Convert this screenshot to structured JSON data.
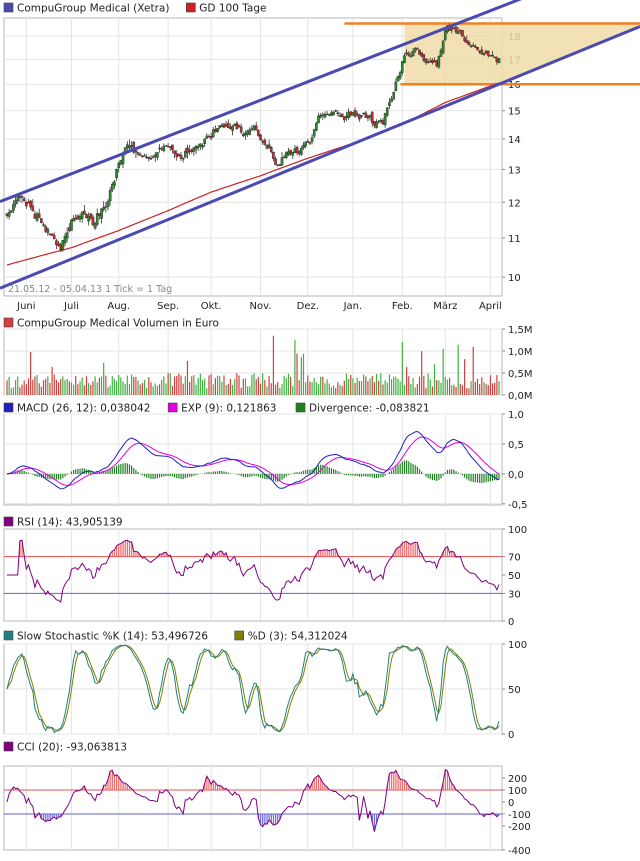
{
  "chart_data": [
    {
      "type": "candlestick",
      "panel": "price",
      "legend": [
        {
          "label": "CompuGroup Medical (Xetra)",
          "color": "#4a4aa8"
        },
        {
          "label": "GD 100 Tage",
          "color": "#cc2222"
        }
      ],
      "date_range_note": "21.05.12 - 05.04.13   1 Tick = 1 Tag",
      "x_tick_labels": [
        "Juni",
        "Juli",
        "Aug.",
        "Sep.",
        "Okt.",
        "Nov.",
        "Dez.",
        "Jan.",
        "Feb.",
        "März",
        "April"
      ],
      "y_tick_labels": [
        "10",
        "11",
        "12",
        "13",
        "14",
        "15",
        "16",
        "17",
        "18"
      ],
      "y_ticks": [
        10,
        11,
        12,
        13,
        14,
        15,
        16,
        17,
        18
      ],
      "ylim": [
        9.55,
        18.8
      ],
      "y_scale": "log",
      "grid": true,
      "close_anchors": [
        [
          "2012-05-21",
          11.6
        ],
        [
          "2012-05-28",
          12.2
        ],
        [
          "2012-06-04",
          11.8
        ],
        [
          "2012-06-11",
          11.4
        ],
        [
          "2012-06-18",
          11.0
        ],
        [
          "2012-06-25",
          10.8
        ],
        [
          "2012-07-02",
          11.4
        ],
        [
          "2012-07-09",
          11.8
        ],
        [
          "2012-07-16",
          11.5
        ],
        [
          "2012-07-23",
          11.9
        ],
        [
          "2012-07-30",
          12.8
        ],
        [
          "2012-08-06",
          13.8
        ],
        [
          "2012-08-13",
          13.5
        ],
        [
          "2012-08-20",
          13.3
        ],
        [
          "2012-08-27",
          13.6
        ],
        [
          "2012-09-03",
          13.7
        ],
        [
          "2012-09-10",
          13.4
        ],
        [
          "2012-09-17",
          13.5
        ],
        [
          "2012-09-24",
          14.0
        ],
        [
          "2012-10-01",
          14.3
        ],
        [
          "2012-10-08",
          14.5
        ],
        [
          "2012-10-15",
          14.4
        ],
        [
          "2012-10-22",
          14.2
        ],
        [
          "2012-10-29",
          14.4
        ],
        [
          "2012-11-05",
          13.9
        ],
        [
          "2012-11-12",
          13.2
        ],
        [
          "2012-11-19",
          13.5
        ],
        [
          "2012-11-26",
          13.4
        ],
        [
          "2012-12-03",
          13.9
        ],
        [
          "2012-12-10",
          14.8
        ],
        [
          "2012-12-17",
          14.9
        ],
        [
          "2012-12-24",
          14.6
        ],
        [
          "2012-12-31",
          14.6
        ],
        [
          "2013-01-07",
          14.7
        ],
        [
          "2013-01-14",
          14.5
        ],
        [
          "2013-01-21",
          14.6
        ],
        [
          "2013-01-28",
          15.7
        ],
        [
          "2013-02-04",
          17.2
        ],
        [
          "2013-02-11",
          17.3
        ],
        [
          "2013-02-18",
          16.9
        ],
        [
          "2013-02-25",
          17.0
        ],
        [
          "2013-03-04",
          18.4
        ],
        [
          "2013-03-11",
          18.2
        ],
        [
          "2013-03-18",
          17.5
        ],
        [
          "2013-03-25",
          17.3
        ],
        [
          "2013-04-05",
          17.2
        ]
      ],
      "sma100_anchors": [
        [
          "2012-05-21",
          10.3
        ],
        [
          "2012-07-01",
          10.75
        ],
        [
          "2012-08-01",
          11.2
        ],
        [
          "2012-09-01",
          11.75
        ],
        [
          "2012-10-01",
          12.3
        ],
        [
          "2012-11-01",
          12.8
        ],
        [
          "2012-12-01",
          13.35
        ],
        [
          "2013-01-01",
          13.85
        ],
        [
          "2013-02-01",
          14.5
        ],
        [
          "2013-03-01",
          15.3
        ],
        [
          "2013-04-05",
          16.05
        ]
      ],
      "trend_channel": {
        "color": "#4a4ab0",
        "upper": [
          [
            "2012-05-21",
            12.1
          ],
          [
            "2013-03-09",
            18.55
          ],
          [
            "2013-04-05",
            19.3
          ]
        ],
        "lower": [
          [
            "2012-05-21",
            9.8
          ],
          [
            "2013-04-05",
            16.0
          ]
        ]
      },
      "highlight_band": {
        "from": 16.0,
        "to": 18.55,
        "line_color": "#f08020",
        "fill": "#f0dca8"
      }
    },
    {
      "type": "bar",
      "panel": "volume",
      "legend": [
        {
          "label": "CompuGroup Medical Volumen in Euro",
          "color": "#d04040"
        }
      ],
      "y_tick_labels": [
        "0,0M",
        "0,5M",
        "1,0M",
        "1,5M"
      ],
      "y_ticks": [
        0,
        0.5,
        1.0,
        1.5
      ],
      "ylim": [
        0,
        1.5
      ],
      "unit": "Mio. Euro",
      "typical_daily_volume": [
        0.15,
        0.5
      ],
      "peak_daily_volume": 1.4,
      "colors": {
        "down": "#d04040",
        "up": "#40b040"
      }
    },
    {
      "type": "line",
      "panel": "macd",
      "legend": [
        {
          "label": "MACD (26, 12): 0,038042",
          "color": "#2020c0"
        },
        {
          "label": "EXP (9): 0,121863",
          "color": "#e000e0"
        },
        {
          "label": "Divergence: -0,083821",
          "color": "#208020"
        }
      ],
      "y_tick_labels": [
        "-0,5",
        "0,0",
        "0,5",
        "1,0"
      ],
      "y_ticks": [
        -0.5,
        0,
        0.5,
        1.0
      ],
      "ylim": [
        -0.52,
        1.0
      ]
    },
    {
      "type": "line",
      "panel": "rsi",
      "legend": [
        {
          "label": "RSI (14): 43,905139",
          "color": "#800080"
        }
      ],
      "y_tick_labels": [
        "0",
        "30",
        "50",
        "70",
        "100"
      ],
      "y_ticks": [
        0,
        30,
        50,
        70,
        100
      ],
      "ylim": [
        0,
        100
      ],
      "reference_lines": [
        {
          "value": 70,
          "color": "#e05050"
        },
        {
          "value": 30,
          "color": "#6060d0"
        }
      ]
    },
    {
      "type": "line",
      "panel": "stochastic",
      "legend": [
        {
          "label": "Slow Stochastic %K (14): 53,496726",
          "color": "#208080"
        },
        {
          "label": "%D (3): 54,312024",
          "color": "#808000"
        }
      ],
      "y_tick_labels": [
        "0",
        "50",
        "100"
      ],
      "y_ticks": [
        0,
        50,
        100
      ],
      "ylim": [
        0,
        100
      ]
    },
    {
      "type": "line",
      "panel": "cci",
      "legend": [
        {
          "label": "CCI (20): -93,063813",
          "color": "#800080"
        }
      ],
      "y_tick_labels": [
        "-400",
        "-200",
        "-100",
        "0",
        "100",
        "200"
      ],
      "y_ticks": [
        -400,
        -200,
        -100,
        0,
        100,
        200
      ],
      "ylim": [
        -400,
        300
      ],
      "reference_lines": [
        {
          "value": 100,
          "color": "#e05050"
        },
        {
          "value": -100,
          "color": "#6060d0"
        }
      ]
    }
  ]
}
